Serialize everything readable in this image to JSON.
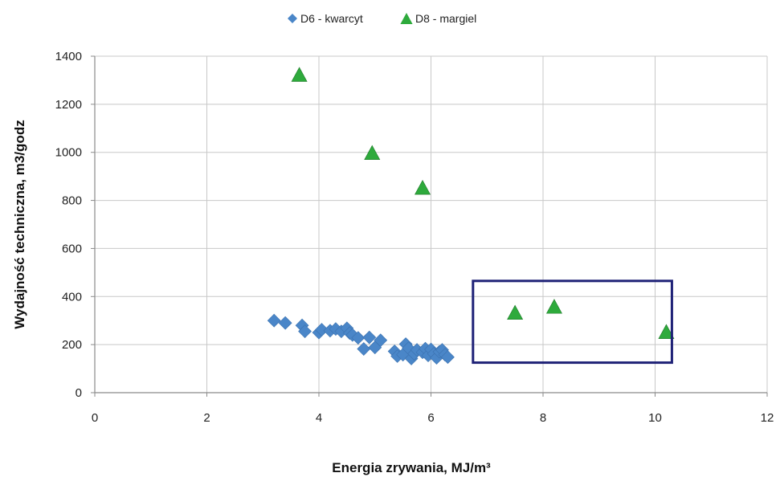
{
  "chart_data": {
    "type": "scatter",
    "xlabel": "Energia zrywania, MJ/m³",
    "ylabel": "Wydajność techniczna, m3/godz",
    "xlim": [
      0,
      12
    ],
    "ylim": [
      0,
      1400
    ],
    "xticks": [
      "0",
      "2",
      "4",
      "6",
      "8",
      "10",
      "12"
    ],
    "yticks": [
      "0",
      "200",
      "400",
      "600",
      "800",
      "1000",
      "1200",
      "1400"
    ],
    "grid": true,
    "legend_position": "top",
    "series": [
      {
        "name": "D6 - kwarcyt",
        "marker": "diamond",
        "color": "#4a86c8",
        "points": [
          [
            3.2,
            300
          ],
          [
            3.4,
            290
          ],
          [
            3.7,
            280
          ],
          [
            3.75,
            255
          ],
          [
            4.0,
            250
          ],
          [
            4.05,
            262
          ],
          [
            4.2,
            258
          ],
          [
            4.3,
            265
          ],
          [
            4.4,
            255
          ],
          [
            4.5,
            268
          ],
          [
            4.55,
            248
          ],
          [
            4.6,
            240
          ],
          [
            4.7,
            228
          ],
          [
            4.8,
            182
          ],
          [
            4.9,
            230
          ],
          [
            5.0,
            188
          ],
          [
            5.1,
            218
          ],
          [
            5.35,
            172
          ],
          [
            5.4,
            152
          ],
          [
            5.5,
            158
          ],
          [
            5.55,
            202
          ],
          [
            5.6,
            185
          ],
          [
            5.65,
            142
          ],
          [
            5.7,
            162
          ],
          [
            5.75,
            178
          ],
          [
            5.85,
            168
          ],
          [
            5.9,
            183
          ],
          [
            5.95,
            155
          ],
          [
            6.0,
            180
          ],
          [
            6.05,
            162
          ],
          [
            6.1,
            145
          ],
          [
            6.15,
            170
          ],
          [
            6.2,
            178
          ],
          [
            6.25,
            158
          ],
          [
            6.3,
            148
          ]
        ]
      },
      {
        "name": "D8 - margiel",
        "marker": "triangle",
        "color": "#2eaa3c",
        "points": [
          [
            3.65,
            1320
          ],
          [
            4.95,
            995
          ],
          [
            5.85,
            850
          ],
          [
            7.5,
            330
          ],
          [
            8.2,
            355
          ],
          [
            10.2,
            250
          ]
        ]
      }
    ],
    "annotations": [
      {
        "type": "rectangle",
        "x0": 6.75,
        "x1": 10.3,
        "y0": 125,
        "y1": 465,
        "color": "#1f2277"
      }
    ]
  }
}
